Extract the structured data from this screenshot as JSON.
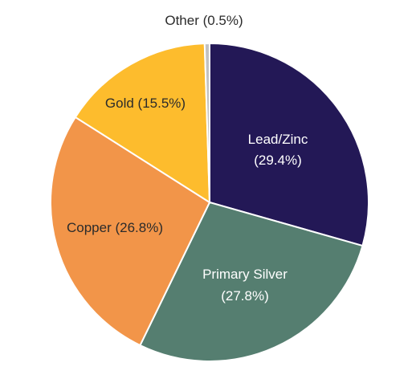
{
  "chart_data": {
    "type": "pie",
    "title": "",
    "slices": [
      {
        "label": "Lead/Zinc",
        "value": 29.4,
        "text_line1": "Lead/Zinc",
        "text_line2": "(29.4%)",
        "color": "#231856",
        "text_color": "#ffffff"
      },
      {
        "label": "Primary Silver",
        "value": 27.8,
        "text_line1": "Primary Silver",
        "text_line2": "(27.8%)",
        "color": "#557e70",
        "text_color": "#ffffff"
      },
      {
        "label": "Copper",
        "value": 26.8,
        "text_line1": "Copper (26.8%)",
        "text_line2": "",
        "color": "#f29549",
        "text_color": "#2b2b2b"
      },
      {
        "label": "Gold",
        "value": 15.5,
        "text_line1": "Gold (15.5%)",
        "text_line2": "",
        "color": "#fdbc2d",
        "text_color": "#2b2b2b"
      },
      {
        "label": "Other",
        "value": 0.5,
        "text_line1": "Other (0.5%)",
        "text_line2": "",
        "color": "#c2c2c2",
        "text_color": "#2b2b2b"
      }
    ]
  }
}
